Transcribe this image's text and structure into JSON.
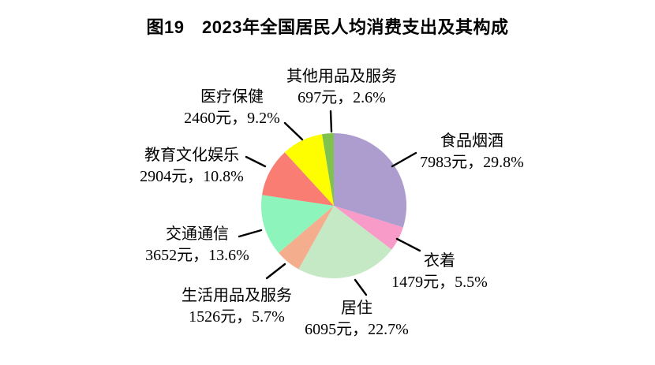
{
  "figure": {
    "title": "图19　2023年全国居民人均消费支出及其构成"
  },
  "chart_data": {
    "type": "pie",
    "title": "图19　2023年全国居民人均消费支出及其构成",
    "unit": "元",
    "direction": "clockwise",
    "start_angle": "top",
    "legend_position": "outside-callout-labels",
    "slices": [
      {
        "key": "food-tobacco-alcohol",
        "name": "食品烟酒",
        "value": 7983,
        "percent": 29.8,
        "value_label": "7983元，29.8%",
        "color": "#ad9cce"
      },
      {
        "key": "clothing",
        "name": "衣着",
        "value": 1479,
        "percent": 5.5,
        "value_label": "1479元，5.5%",
        "color": "#f99bc8"
      },
      {
        "key": "housing",
        "name": "居住",
        "value": 6095,
        "percent": 22.7,
        "value_label": "6095元，22.7%",
        "color": "#c5e8c5"
      },
      {
        "key": "household-goods-services",
        "name": "生活用品及服务",
        "value": 1526,
        "percent": 5.7,
        "value_label": "1526元，5.7%",
        "color": "#f4ae8e"
      },
      {
        "key": "transport-communication",
        "name": "交通通信",
        "value": 3652,
        "percent": 13.6,
        "value_label": "3652元，13.6%",
        "color": "#8df5bc"
      },
      {
        "key": "education-culture-recreation",
        "name": "教育文化娱乐",
        "value": 2904,
        "percent": 10.8,
        "value_label": "2904元，10.8%",
        "color": "#fa7d74"
      },
      {
        "key": "healthcare",
        "name": "医疗保健",
        "value": 2460,
        "percent": 9.2,
        "value_label": "2460元，9.2%",
        "color": "#fefe00"
      },
      {
        "key": "other-goods-services",
        "name": "其他用品及服务",
        "value": 697,
        "percent": 2.6,
        "value_label": "697元，2.6%",
        "color": "#80c24e"
      }
    ]
  }
}
